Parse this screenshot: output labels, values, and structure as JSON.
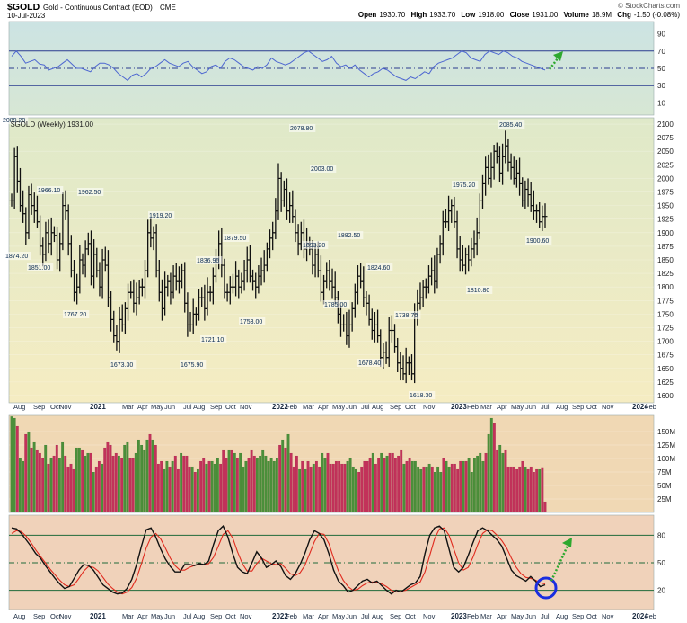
{
  "header": {
    "symbol": "$GOLD",
    "name": "Gold - Continuous Contract (EOD)",
    "exchange": "CME",
    "date": "10-Jul-2023",
    "watermark": "© StockCharts.com",
    "open_label": "Open",
    "open": "1930.70",
    "high_label": "High",
    "high": "1933.70",
    "low_label": "Low",
    "low": "1918.00",
    "close_label": "Close",
    "close": "1931.00",
    "volume_label": "Volume",
    "volume": "18.9M",
    "chg_label": "Chg",
    "chg": "-1.50 (-0.08%)"
  },
  "colors": {
    "rsi_bg": "#cfe3e0",
    "price_bg_top": "#dfe9c9",
    "price_bg_bottom": "#f5ecc2",
    "volume_bg": "#f0d8b4",
    "stoch_bg": "#f0d2ba",
    "bar_color": "#111111",
    "rsi_line": "#4d66d1",
    "vol_up": "#4b8f3a",
    "vol_down": "#c2325a",
    "stoch_k": "#111111",
    "stoch_d": "#e02a1e",
    "arrow": "#2ea82e",
    "circle": "#1a2ee0"
  },
  "chart_data": [
    {
      "type": "line",
      "panel": "rsi",
      "ylim": [
        0,
        100
      ],
      "yticks": [
        "90",
        "70",
        "50",
        "30",
        "10"
      ],
      "yticks_values": [
        90,
        70,
        50,
        30,
        10
      ],
      "reference_lines": [
        70,
        50,
        30
      ],
      "values": [
        64,
        70,
        64,
        56,
        58,
        60,
        55,
        54,
        48,
        50,
        52,
        56,
        60,
        55,
        50,
        50,
        48,
        46,
        52,
        56,
        56,
        54,
        50,
        44,
        40,
        36,
        42,
        44,
        40,
        44,
        50,
        52,
        56,
        60,
        56,
        54,
        52,
        56,
        58,
        52,
        48,
        44,
        46,
        52,
        54,
        50,
        58,
        62,
        60,
        56,
        52,
        50,
        48,
        52,
        50,
        54,
        62,
        58,
        56,
        54,
        56,
        60,
        64,
        68,
        70,
        66,
        62,
        58,
        60,
        64,
        56,
        52,
        54,
        50,
        54,
        48,
        44,
        40,
        44,
        46,
        50,
        48,
        44,
        40,
        38,
        36,
        40,
        38,
        42,
        46,
        44,
        52,
        56,
        58,
        60,
        62,
        66,
        70,
        68,
        62,
        60,
        58,
        66,
        70,
        68,
        66,
        70,
        68,
        64,
        62,
        58,
        56,
        54,
        52,
        50,
        48
      ]
    },
    {
      "type": "ohlc",
      "panel": "price",
      "title_label": "$GOLD (Weekly) 1931.00",
      "ylim": [
        1590,
        2110
      ],
      "yticks": [
        "2100",
        "2075",
        "2050",
        "2025",
        "2000",
        "1975",
        "1950",
        "1925",
        "1900",
        "1875",
        "1850",
        "1825",
        "1800",
        "1775",
        "1750",
        "1725",
        "1700",
        "1675",
        "1650",
        "1625",
        "1600"
      ],
      "yticks_values": [
        2100,
        2075,
        2050,
        2025,
        2000,
        1975,
        1950,
        1925,
        1900,
        1875,
        1850,
        1825,
        1800,
        1775,
        1750,
        1725,
        1700,
        1675,
        1650,
        1625,
        1600
      ],
      "close": [
        1960,
        2040,
        1995,
        1950,
        1935,
        1900,
        1970,
        1950,
        1940,
        1920,
        1875,
        1860,
        1900,
        1880,
        1900,
        1895,
        1850,
        1880,
        1950,
        1940,
        1880,
        1830,
        1790,
        1800,
        1850,
        1840,
        1870,
        1880,
        1820,
        1860,
        1830,
        1800,
        1850,
        1840,
        1780,
        1740,
        1710,
        1700,
        1740,
        1730,
        1760,
        1790,
        1790,
        1770,
        1780,
        1800,
        1800,
        1830,
        1900,
        1890,
        1900,
        1830,
        1790,
        1760,
        1800,
        1810,
        1790,
        1820,
        1810,
        1810,
        1830,
        1770,
        1730,
        1730,
        1750,
        1750,
        1780,
        1780,
        1760,
        1790,
        1790,
        1820,
        1850,
        1880,
        1840,
        1790,
        1790,
        1800,
        1800,
        1820,
        1800,
        1810,
        1830,
        1850,
        1820,
        1810,
        1800,
        1820,
        1830,
        1840,
        1870,
        1890,
        1900,
        1940,
        2000,
        1960,
        1980,
        1940,
        1950,
        1930,
        1900,
        1880,
        1900,
        1870,
        1880,
        1870,
        1840,
        1860,
        1830,
        1790,
        1810,
        1830,
        1810,
        1800,
        1780,
        1750,
        1730,
        1730,
        1710,
        1730,
        1760,
        1790,
        1820,
        1810,
        1780,
        1770,
        1740,
        1720,
        1730,
        1710,
        1670,
        1680,
        1670,
        1720,
        1720,
        1690,
        1660,
        1650,
        1640,
        1660,
        1660,
        1640,
        1750,
        1770,
        1780,
        1800,
        1800,
        1820,
        1830,
        1810,
        1860,
        1880,
        1920,
        1920,
        1940,
        1950,
        1920,
        1870,
        1850,
        1840,
        1860,
        1850,
        1870,
        1880,
        1900,
        1960,
        1990,
        2020,
        2000,
        2020,
        2050,
        2040,
        2010,
        2040,
        2060,
        2030,
        2020,
        2000,
        2010,
        1990,
        1960,
        1980,
        1970,
        1950,
        1940,
        1940,
        1920,
        1930,
        1930
      ]
    },
    {
      "type": "bar",
      "panel": "volume",
      "ylim": [
        0,
        175
      ],
      "yticks": [
        "150M",
        "125M",
        "100M",
        "75M",
        "50M",
        "25M"
      ],
      "yticks_values": [
        150,
        125,
        100,
        75,
        50,
        25
      ],
      "values": [
        178,
        175,
        160,
        100,
        95,
        145,
        150,
        120,
        130,
        115,
        110,
        100,
        125,
        90,
        100,
        105,
        125,
        100,
        130,
        105,
        85,
        90,
        80,
        120,
        120,
        115,
        105,
        110,
        110,
        75,
        85,
        95,
        90,
        120,
        130,
        125,
        105,
        110,
        105,
        100,
        125,
        130,
        100,
        100,
        110,
        135,
        125,
        115,
        135,
        145,
        135,
        125,
        90,
        95,
        80,
        95,
        85,
        95,
        105,
        80,
        110,
        105,
        105,
        85,
        85,
        75,
        80,
        95,
        100,
        90,
        95,
        95,
        90,
        100,
        90,
        115,
        100,
        115,
        115,
        110,
        100,
        110,
        85,
        95,
        100,
        115,
        105,
        100,
        105,
        115,
        105,
        95,
        100,
        95,
        100,
        125,
        135,
        120,
        145,
        110,
        85,
        105,
        80,
        95,
        80,
        95,
        85,
        90,
        95,
        85,
        110,
        100,
        110,
        90,
        90,
        95,
        95,
        90,
        90,
        95,
        100,
        85,
        80,
        75,
        85,
        95,
        95,
        100,
        110,
        90,
        100,
        110,
        100,
        105,
        110,
        110,
        100,
        105,
        115,
        90,
        95,
        100,
        95,
        95,
        85,
        80,
        85,
        85,
        90,
        85,
        75,
        85,
        75,
        100,
        95,
        85,
        90,
        90,
        80,
        95,
        95,
        95,
        100,
        75,
        100,
        105,
        110,
        95,
        110,
        145,
        175,
        165,
        115,
        125,
        110,
        115,
        85,
        85,
        85,
        80,
        85,
        95,
        85,
        80,
        85,
        75,
        80,
        80,
        82,
        20
      ],
      "up": [
        1,
        1,
        0,
        1,
        1,
        0,
        1,
        0,
        1,
        0,
        0,
        0,
        1,
        0,
        1,
        0,
        0,
        1,
        1,
        0,
        0,
        0,
        0,
        1,
        1,
        0,
        1,
        1,
        0,
        1,
        0,
        0,
        1,
        0,
        0,
        0,
        0,
        0,
        1,
        0,
        1,
        1,
        0,
        0,
        1,
        1,
        1,
        1,
        1,
        0,
        1,
        0,
        0,
        0,
        1,
        1,
        0,
        1,
        0,
        0,
        1,
        0,
        0,
        0,
        1,
        0,
        1,
        0,
        0,
        1,
        0,
        1,
        1,
        1,
        0,
        0,
        0,
        1,
        0,
        1,
        0,
        1,
        1,
        1,
        0,
        0,
        0,
        1,
        1,
        1,
        1,
        1,
        1,
        1,
        1,
        0,
        1,
        0,
        1,
        0,
        0,
        0,
        1,
        0,
        1,
        0,
        0,
        1,
        0,
        0,
        1,
        1,
        0,
        0,
        0,
        0,
        0,
        0,
        0,
        1,
        1,
        1,
        1,
        0,
        0,
        0,
        0,
        0,
        1,
        0,
        0,
        1,
        0,
        1,
        0,
        0,
        0,
        0,
        0,
        1,
        0,
        0,
        1,
        1,
        1,
        1,
        0,
        1,
        1,
        0,
        1,
        1,
        1,
        0,
        1,
        1,
        0,
        0,
        0,
        0,
        1,
        0,
        1,
        1,
        1,
        1,
        1,
        1,
        0,
        1,
        1,
        0,
        0,
        1,
        1,
        0,
        0,
        0,
        0,
        0,
        0,
        0,
        1,
        0,
        0,
        0,
        0,
        1,
        0
      ]
    },
    {
      "type": "line",
      "panel": "stochastic",
      "ylim": [
        0,
        100
      ],
      "yticks": [
        "80",
        "50",
        "20"
      ],
      "yticks_values": [
        80,
        50,
        20
      ],
      "reference_lines": [
        80,
        50,
        20
      ],
      "series": [
        {
          "role": "k",
          "values": [
            88,
            87,
            82,
            75,
            68,
            60,
            55,
            47,
            40,
            33,
            27,
            22,
            24,
            33,
            42,
            48,
            47,
            42,
            34,
            26,
            22,
            18,
            16,
            17,
            22,
            32,
            48,
            68,
            86,
            88,
            78,
            65,
            54,
            46,
            40,
            40,
            48,
            48,
            47,
            49,
            48,
            52,
            70,
            85,
            90,
            78,
            60,
            45,
            40,
            38,
            50,
            62,
            55,
            45,
            48,
            52,
            46,
            36,
            32,
            38,
            48,
            60,
            75,
            85,
            82,
            75,
            60,
            42,
            30,
            25,
            18,
            20,
            25,
            30,
            32,
            28,
            30,
            25,
            20,
            16,
            20,
            18,
            22,
            26,
            28,
            35,
            60,
            80,
            88,
            90,
            85,
            65,
            45,
            40,
            45,
            58,
            72,
            85,
            88,
            85,
            80,
            75,
            68,
            55,
            42,
            36,
            33,
            30,
            35,
            30,
            24,
            26
          ]
        },
        {
          "role": "d",
          "values": [
            82,
            85,
            84,
            79,
            72,
            64,
            57,
            50,
            43,
            37,
            31,
            26,
            24,
            26,
            33,
            41,
            46,
            45,
            41,
            34,
            27,
            22,
            18,
            16,
            18,
            23,
            33,
            49,
            66,
            78,
            82,
            76,
            66,
            55,
            47,
            42,
            42,
            45,
            47,
            48,
            48,
            49,
            56,
            68,
            81,
            85,
            77,
            62,
            49,
            41,
            41,
            49,
            55,
            52,
            49,
            48,
            49,
            44,
            38,
            36,
            39,
            47,
            60,
            73,
            82,
            81,
            71,
            55,
            41,
            31,
            24,
            20,
            21,
            25,
            28,
            29,
            29,
            27,
            24,
            20,
            18,
            19,
            20,
            23,
            26,
            29,
            40,
            58,
            76,
            87,
            88,
            80,
            65,
            50,
            42,
            45,
            56,
            70,
            82,
            86,
            85,
            80,
            74,
            66,
            55,
            45,
            38,
            34,
            33,
            31,
            28,
            27
          ]
        }
      ]
    }
  ],
  "price_labels": [
    "2089.20",
    "1874.20",
    "1851.00",
    "1966.10",
    "1962.50",
    "1767.20",
    "1673.30",
    "1919.20",
    "1675.90",
    "1836.90",
    "1721.10",
    "1879.50",
    "1753.00",
    "2078.80",
    "2003.00",
    "1893.20",
    "1785.00",
    "1882.50",
    "1824.60",
    "1678.40",
    "1738.70",
    "1618.30",
    "1975.20",
    "1810.80",
    "2085.40",
    "1900.60"
  ],
  "x_axis": {
    "months": [
      "Aug",
      "Sep",
      "Oct",
      "Nov",
      "Mar",
      "Apr",
      "May",
      "Jun",
      "Jul",
      "Aug",
      "Sep",
      "Oct",
      "Nov",
      "Feb",
      "Mar",
      "Apr",
      "May",
      "Jun",
      "Jul",
      "Aug",
      "Sep",
      "Oct",
      "Nov",
      "Feb",
      "Mar",
      "Apr",
      "May",
      "Jun",
      "Jul",
      "Aug",
      "Sep",
      "Oct",
      "Nov",
      "Feb"
    ],
    "years": [
      "2021",
      "2022",
      "2023",
      "2024"
    ]
  }
}
